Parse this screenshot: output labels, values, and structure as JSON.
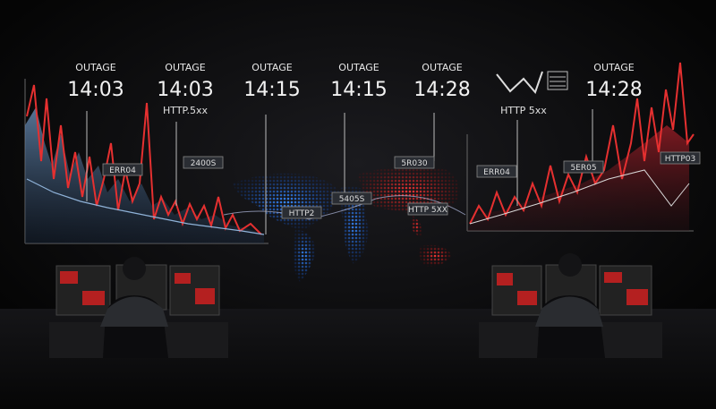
{
  "callouts": [
    {
      "label": "OUTAGE",
      "time": "14:03"
    },
    {
      "label": "OUTAGE",
      "time": "14:03"
    },
    {
      "label": "OUTAGE",
      "time": "14:15"
    },
    {
      "label": "OUTAGE",
      "time": "14:15"
    },
    {
      "label": "OUTAGE",
      "time": "14:28"
    },
    {
      "label": "OUTAGE",
      "time": "14:28"
    }
  ],
  "notes": [
    "HTTP.5xx",
    "HTTP 5xx"
  ],
  "tags": [
    "ERR04",
    "2400S",
    "HTTP2",
    "5405S",
    "5R030",
    "HTTP 5XX",
    "ERR04",
    "5ER05",
    "HTTP03"
  ]
}
